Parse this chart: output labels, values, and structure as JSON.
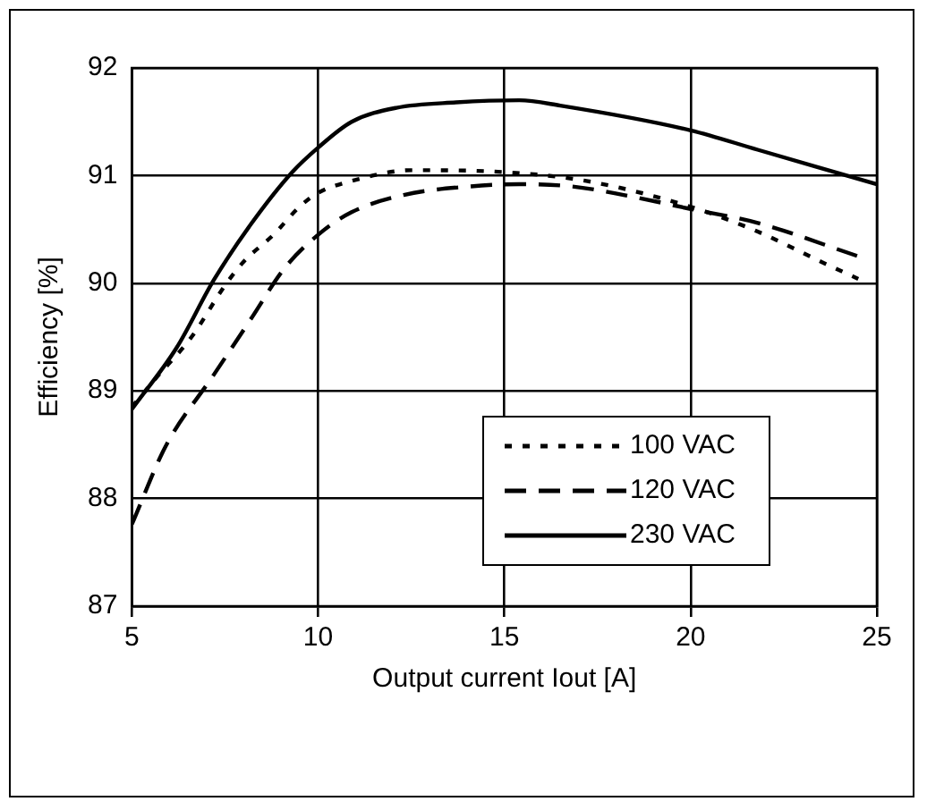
{
  "chart_data": {
    "type": "line",
    "xlabel": "Output current Iout [A]",
    "ylabel": "Efficiency [%]",
    "xlim": [
      5,
      25
    ],
    "xticks": [
      5,
      10,
      15,
      20,
      25
    ],
    "ylim": [
      87,
      92
    ],
    "yticks": [
      87,
      88,
      89,
      90,
      91,
      92
    ],
    "grid": true,
    "legend": "bottom right",
    "marker": "none",
    "series": [
      {
        "name": "100 VAC",
        "color": "#000000",
        "line_style": "dotted",
        "x": [
          5,
          5.6,
          6.6,
          7.5,
          8,
          8.8,
          9.5,
          10,
          10.9,
          12.5,
          15.1,
          17.2,
          20,
          21.8,
          23.5,
          24.5
        ],
        "values": [
          88.85,
          89.1,
          89.5,
          89.98,
          90.2,
          90.45,
          90.71,
          90.84,
          90.95,
          91.05,
          91.03,
          90.95,
          90.71,
          90.48,
          90.2,
          90.04
        ]
      },
      {
        "name": "120 VAC",
        "color": "#000000",
        "line_style": "dashed",
        "x": [
          5,
          5.9,
          7.2,
          8.2,
          9.1,
          10,
          10.9,
          12.3,
          14.1,
          15.4,
          16.8,
          18.2,
          20,
          21.8,
          24.5
        ],
        "values": [
          87.76,
          88.48,
          89.15,
          89.67,
          90.14,
          90.45,
          90.66,
          90.82,
          90.9,
          90.92,
          90.9,
          90.82,
          90.69,
          90.56,
          90.25
        ]
      },
      {
        "name": "230 VAC",
        "color": "#000000",
        "line_style": "solid",
        "x": [
          5,
          6.2,
          7.2,
          8.2,
          9.3,
          10,
          10.9,
          12.1,
          13.7,
          15.4,
          16.5,
          20,
          21.8,
          25
        ],
        "values": [
          88.83,
          89.4,
          90.03,
          90.55,
          91.03,
          91.26,
          91.5,
          91.63,
          91.68,
          91.7,
          91.65,
          91.42,
          91.24,
          90.92
        ]
      }
    ]
  }
}
